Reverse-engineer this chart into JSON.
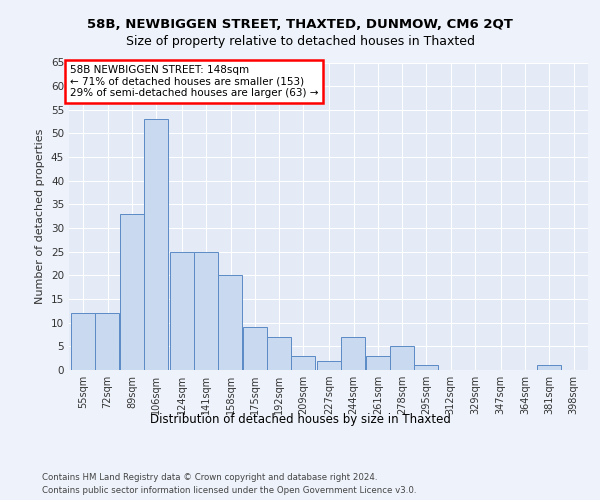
{
  "title1": "58B, NEWBIGGEN STREET, THAXTED, DUNMOW, CM6 2QT",
  "title2": "Size of property relative to detached houses in Thaxted",
  "xlabel": "Distribution of detached houses by size in Thaxted",
  "ylabel": "Number of detached properties",
  "bins": [
    55,
    72,
    89,
    106,
    124,
    141,
    158,
    175,
    192,
    209,
    227,
    244,
    261,
    278,
    295,
    312,
    329,
    347,
    364,
    381,
    398
  ],
  "values": [
    12,
    12,
    33,
    53,
    25,
    25,
    20,
    9,
    7,
    3,
    2,
    7,
    3,
    5,
    1,
    0,
    0,
    0,
    0,
    1,
    0
  ],
  "bar_color": "#c9d9f0",
  "bar_edge_color": "#5b8ac5",
  "annotation_line1": "58B NEWBIGGEN STREET: 148sqm",
  "annotation_line2": "← 71% of detached houses are smaller (153)",
  "annotation_line3": "29% of semi-detached houses are larger (63) →",
  "ylim": [
    0,
    65
  ],
  "yticks": [
    0,
    5,
    10,
    15,
    20,
    25,
    30,
    35,
    40,
    45,
    50,
    55,
    60,
    65
  ],
  "footer1": "Contains HM Land Registry data © Crown copyright and database right 2024.",
  "footer2": "Contains public sector information licensed under the Open Government Licence v3.0.",
  "bg_color": "#eef2fa",
  "plot_bg_color": "#e4eaf6"
}
